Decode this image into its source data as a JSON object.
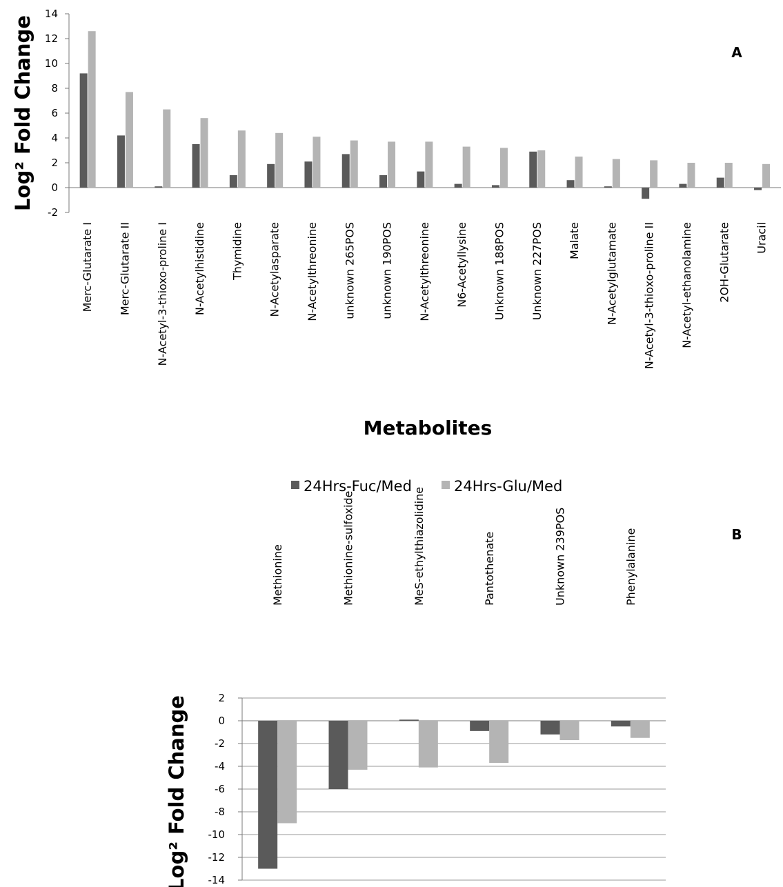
{
  "legend": {
    "series": [
      {
        "name": "24Hrs-Fuc/Med",
        "color": "#5a5a5a"
      },
      {
        "name": "24Hrs-Glu/Med",
        "color": "#b4b4b4"
      }
    ],
    "placement": "between panels"
  },
  "chart_data": [
    {
      "type": "bar",
      "panel_label": "A",
      "title": "",
      "xlabel": "Metabolites",
      "ylabel": "Log² Fold Change",
      "ylim": [
        -2,
        14
      ],
      "yticks": [
        -2,
        0,
        2,
        4,
        6,
        8,
        10,
        12,
        14
      ],
      "grid": false,
      "categories": [
        "Merc-Glutarate I",
        "Merc-Glutarate II",
        "N-Acetyl-3-thioxo-proline I",
        "N-Acetylhistidine",
        "Thymidine",
        "N-Acetylasparate",
        "N-Acetylthreonine",
        "unknown 265POS",
        "unknown 190POS",
        "N-Acetylthreonine",
        "N6-Acetyllysine",
        "Unknown 188POS",
        "Unknown 227POS",
        "Malate",
        "N-Acetylglutamate",
        "N-Acetyl-3-thioxo-proline II",
        "N-Acetyl-ethanolamine",
        "2OH-Glutarate",
        "Uracil"
      ],
      "series": [
        {
          "name": "24Hrs-Fuc/Med",
          "values": [
            9.2,
            4.2,
            0.1,
            3.5,
            1.0,
            1.9,
            2.1,
            2.7,
            1.0,
            1.3,
            0.3,
            0.2,
            2.9,
            0.6,
            0.1,
            -0.9,
            0.3,
            0.8,
            -0.2
          ]
        },
        {
          "name": "24Hrs-Glu/Med",
          "values": [
            12.6,
            7.7,
            6.3,
            5.6,
            4.6,
            4.4,
            4.1,
            3.8,
            3.7,
            3.7,
            3.3,
            3.2,
            3.0,
            2.5,
            2.3,
            2.2,
            2.0,
            2.0,
            1.9
          ]
        }
      ]
    },
    {
      "type": "bar",
      "panel_label": "B",
      "title": "",
      "xlabel": "",
      "ylabel": "Log² Fold Change",
      "ylim": [
        -14,
        2
      ],
      "yticks": [
        -14,
        -12,
        -10,
        -8,
        -6,
        -4,
        -2,
        0,
        2
      ],
      "grid": true,
      "categories": [
        "Methionine",
        "Methionine-sulfoxide",
        "MeS-ethylthiazolidine",
        "Pantothenate",
        "Unknown 239POS",
        "Phenylalanine"
      ],
      "series": [
        {
          "name": "24Hrs-Fuc/Med",
          "values": [
            -13.0,
            -6.0,
            0.1,
            -0.9,
            -1.2,
            -0.5
          ]
        },
        {
          "name": "24Hrs-Glu/Med",
          "values": [
            -9.0,
            -4.3,
            -4.1,
            -3.7,
            -1.7,
            -1.5
          ]
        }
      ]
    }
  ]
}
